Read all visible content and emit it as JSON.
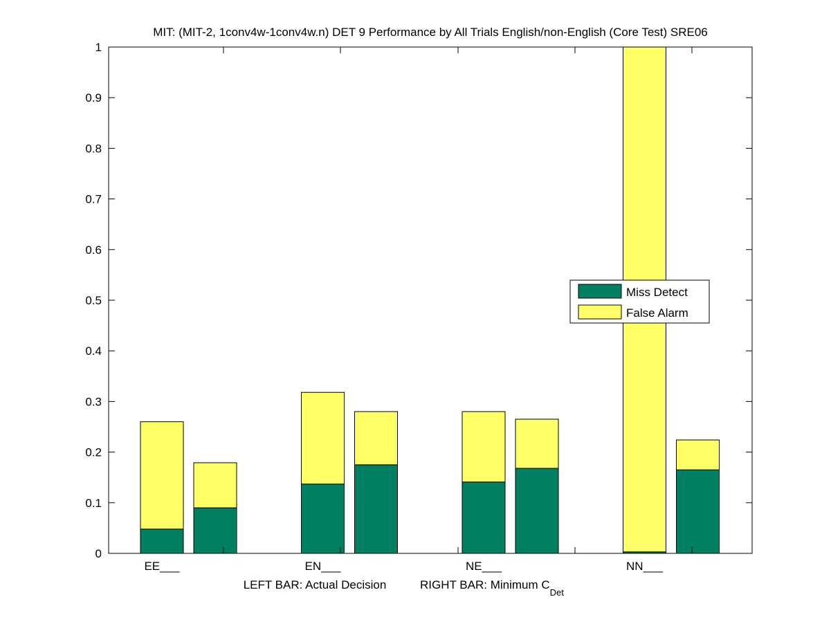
{
  "chart_data": {
    "type": "bar",
    "stacked": true,
    "title": "MIT: (MIT-2, 1conv4w-1conv4w.n) DET 9 Performance by All Trials English/non-English (Core Test) SRE06",
    "xlabel_left": "LEFT BAR: Actual Decision",
    "xlabel_right": "RIGHT BAR: Minimum C",
    "xlabel_right_sub": "Det",
    "categories": [
      "EE___",
      "EN___",
      "NE___",
      "NN___"
    ],
    "ylim": [
      0,
      1
    ],
    "yticks": [
      "0",
      "0.1",
      "0.2",
      "0.3",
      "0.4",
      "0.5",
      "0.6",
      "0.7",
      "0.8",
      "0.9",
      "1"
    ],
    "legend_position": "center-right",
    "series": [
      {
        "name": "Miss Detect",
        "color": "#007f63",
        "actual": [
          0.048,
          0.137,
          0.141,
          0.003
        ],
        "minimum": [
          0.09,
          0.175,
          0.168,
          0.165
        ]
      },
      {
        "name": "False Alarm",
        "color": "#ffff66",
        "actual": [
          0.212,
          0.181,
          0.139,
          0.997
        ],
        "minimum": [
          0.089,
          0.105,
          0.097,
          0.059
        ]
      }
    ]
  }
}
